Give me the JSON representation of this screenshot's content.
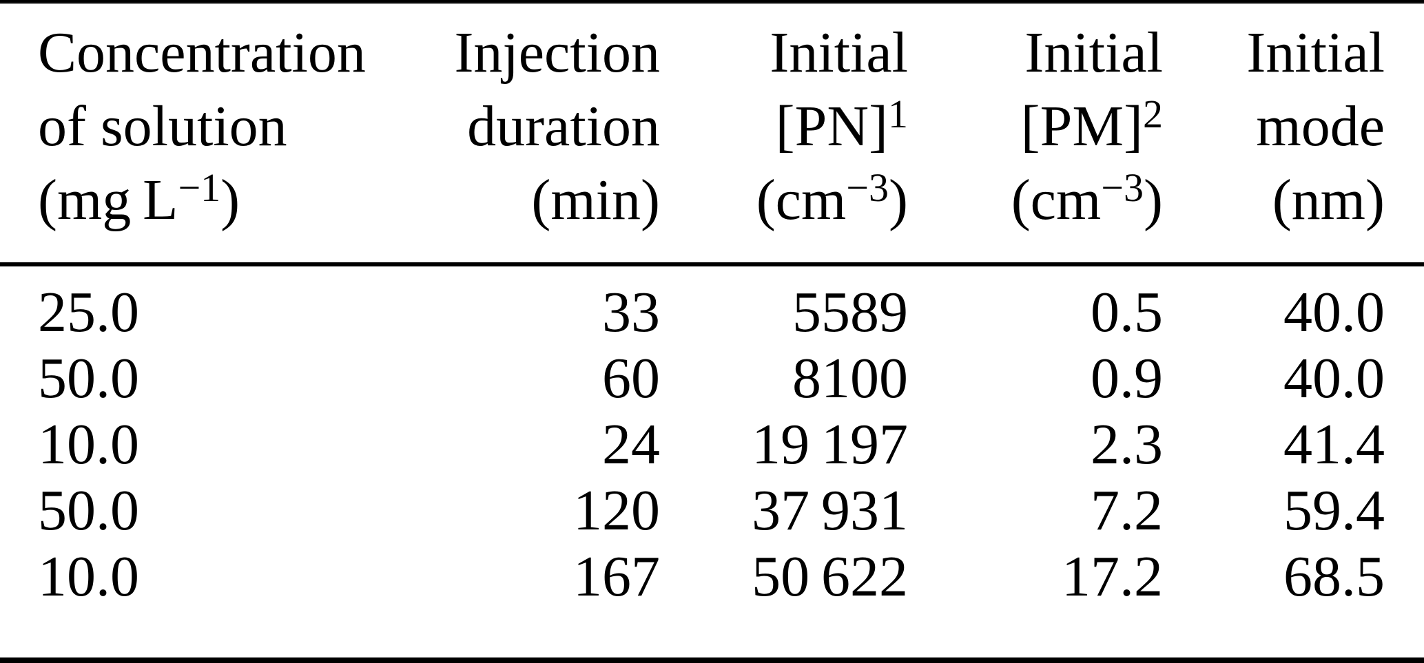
{
  "table": {
    "columns": [
      {
        "id": "concentration",
        "align": "left",
        "header_lines": [
          {
            "pre": "Concentration"
          },
          {
            "pre": "of solution"
          },
          {
            "pre": "(mg L",
            "sup": "−1",
            "post": ")"
          }
        ]
      },
      {
        "id": "injection-duration",
        "align": "right",
        "header_lines": [
          {
            "pre": "Injection"
          },
          {
            "pre": "duration"
          },
          {
            "pre": "(min)"
          }
        ]
      },
      {
        "id": "initial-pn",
        "align": "right",
        "header_lines": [
          {
            "pre": "Initial"
          },
          {
            "pre": "[PN]",
            "sup": "1"
          },
          {
            "pre": "(cm",
            "sup": "−3",
            "post": ")"
          }
        ]
      },
      {
        "id": "initial-pm",
        "align": "right",
        "header_lines": [
          {
            "pre": "Initial"
          },
          {
            "pre": "[PM]",
            "sup": "2"
          },
          {
            "pre": "(cm",
            "sup": "−3",
            "post": ")"
          }
        ]
      },
      {
        "id": "initial-mode",
        "align": "right",
        "header_lines": [
          {
            "pre": "Initial"
          },
          {
            "pre": "mode"
          },
          {
            "pre": "(nm)"
          }
        ]
      }
    ],
    "rows": [
      [
        "25.0",
        "33",
        "5589",
        "0.5",
        "40.0"
      ],
      [
        "50.0",
        "60",
        "8100",
        "0.9",
        "40.0"
      ],
      [
        "10.0",
        "24",
        "19 197",
        "2.3",
        "41.4"
      ],
      [
        "50.0",
        "120",
        "37 931",
        "7.2",
        "59.4"
      ],
      [
        "10.0",
        "167",
        "50 622",
        "17.2",
        "68.5"
      ]
    ]
  },
  "colors": {
    "text": "#000000",
    "background": "#ffffff",
    "rule": "#000000",
    "rule_fringe": "#777777"
  }
}
